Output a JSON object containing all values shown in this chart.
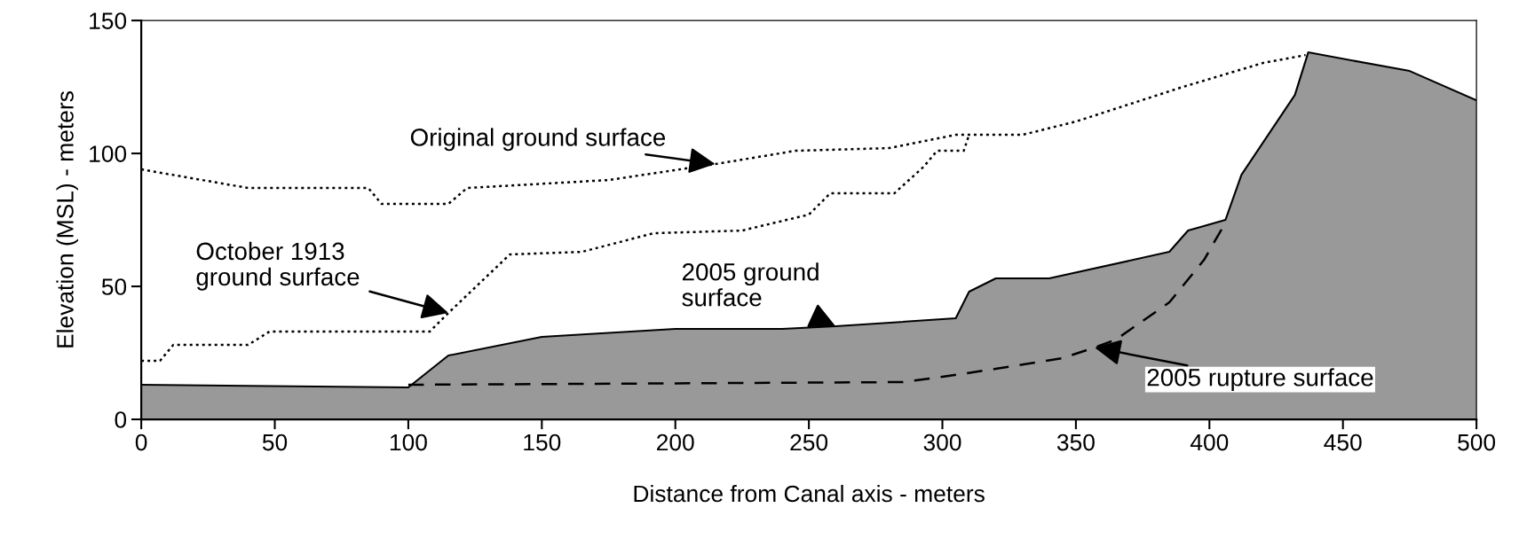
{
  "chart_data": {
    "type": "line",
    "xlabel": "Distance from Canal axis - meters",
    "ylabel": "Elevation (MSL) - meters",
    "xlim": [
      0,
      500
    ],
    "xticks": [
      0,
      50,
      100,
      150,
      200,
      250,
      300,
      350,
      400,
      450,
      500
    ],
    "ylim": [
      0,
      150
    ],
    "yticks": [
      0,
      50,
      100,
      150
    ],
    "grid": false,
    "legend": false,
    "series": [
      {
        "type": "area",
        "color": "#999999",
        "line_style": "solid",
        "x": [
          0,
          100,
          115,
          150,
          200,
          240,
          260,
          305,
          310,
          320,
          340,
          385,
          392,
          406,
          412,
          432,
          437,
          475,
          500
        ],
        "values": [
          13,
          12,
          24,
          31,
          34,
          34,
          35,
          38,
          48,
          53,
          53,
          63,
          71,
          75,
          92,
          122,
          138,
          131,
          120
        ]
      },
      {
        "color": "#000000",
        "line_style": "dotted",
        "x": [
          0,
          40,
          85,
          90,
          115,
          122,
          175,
          215,
          245,
          280,
          305,
          330,
          350,
          390,
          420,
          436
        ],
        "values": [
          94,
          87,
          87,
          81,
          81,
          87,
          90,
          96,
          101,
          102,
          107,
          107,
          112,
          125,
          134,
          137
        ]
      },
      {
        "color": "#000000",
        "line_style": "dotted",
        "x": [
          0,
          7,
          12,
          40,
          48,
          108,
          115,
          138,
          165,
          192,
          225,
          250,
          258,
          282,
          293,
          298,
          308,
          310
        ],
        "values": [
          22,
          22,
          28,
          28,
          33,
          33,
          40,
          62,
          63,
          70,
          71,
          77,
          85,
          85,
          95,
          101,
          101,
          107
        ]
      },
      {
        "color": "#000000",
        "line_style": "dashed",
        "x": [
          100,
          285,
          300,
          320,
          345,
          357,
          365,
          385,
          398,
          406
        ],
        "values": [
          13,
          14,
          16,
          19,
          23,
          27,
          30,
          44,
          60,
          74
        ]
      }
    ],
    "annotations": [
      {
        "text": "Original ground surface",
        "x": 215,
        "y": 96
      },
      {
        "text": "October 1913\nground surface",
        "x": 115,
        "y": 40
      },
      {
        "text": "2005 ground\nsurface",
        "x": 260,
        "y": 35
      },
      {
        "text": "2005 rupture surface",
        "x": 357,
        "y": 27
      }
    ]
  }
}
